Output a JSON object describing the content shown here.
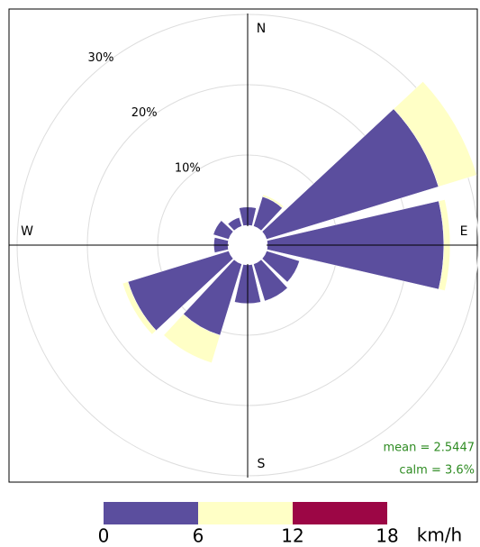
{
  "chart_data": {
    "type": "windrose",
    "directions": [
      0,
      30,
      60,
      90,
      120,
      150,
      180,
      210,
      240,
      270,
      300,
      330
    ],
    "direction_labels": [
      "N",
      "E",
      "S",
      "W"
    ],
    "series": [
      {
        "color": "#5b4e9e",
        "values": [
          2.6,
          4.4,
          25.6,
          25.1,
          4.9,
          5.5,
          5.5,
          10.6,
          15.0,
          2.0,
          2.3,
          1.3
        ]
      },
      {
        "color": "#ffffc6",
        "values": [
          0,
          0.3,
          5.7,
          0.9,
          0,
          0,
          0,
          4.1,
          0.8,
          0,
          0,
          0
        ]
      },
      {
        "color": "#9c0645",
        "values": [
          0,
          0,
          0,
          0,
          0,
          0,
          0,
          0,
          0,
          0,
          0,
          0
        ]
      }
    ],
    "rlim": [
      0,
      30
    ],
    "rticks": [
      {
        "value": 10,
        "label": "10%"
      },
      {
        "value": 20,
        "label": "20%"
      },
      {
        "value": 30,
        "label": "30%"
      }
    ],
    "legend": {
      "breaks": [
        0,
        6,
        12,
        18
      ],
      "unit": "km/h"
    },
    "annotations": [
      "mean = 2.5447",
      "calm = 3.6%"
    ]
  }
}
